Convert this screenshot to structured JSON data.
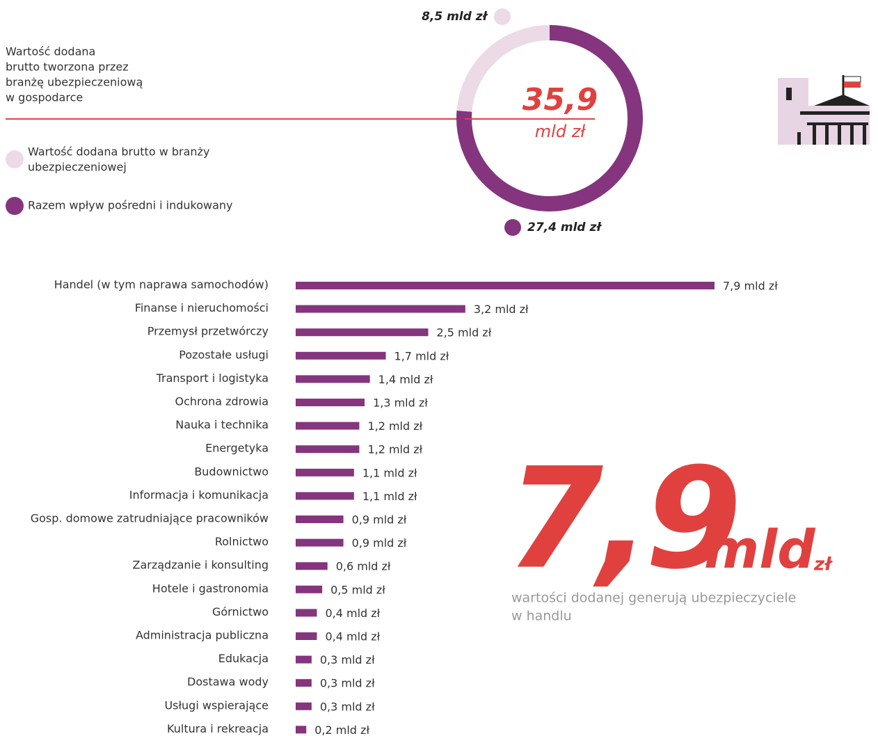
{
  "chart_data": [
    {
      "type": "donut",
      "title": [
        "Wartość dodana",
        "brutto tworzona przez",
        "branżę ubezpieczeniową",
        "w gospodarce"
      ],
      "total_label": "35,9",
      "total_unit": "mld zł",
      "series": [
        {
          "name": [
            "Wartość dodana brutto w branży",
            "ubezpieczeniowej"
          ],
          "color": "#ecdbe6",
          "values": [
            8.5
          ],
          "value_labels": [
            "8,5 mld zł"
          ]
        },
        {
          "name": [
            "Razem wpływ pośredni i indukowany"
          ],
          "color": "#84357e",
          "values": [
            27.4
          ],
          "value_labels": [
            "27,4 mld zł"
          ]
        }
      ]
    },
    {
      "type": "hbar",
      "color": "#84357e",
      "categories": [
        "Handel (w tym naprawa samochodów)",
        "Finanse i nieruchomości",
        "Przemysł przetwórczy",
        "Pozostałe usługi",
        "Transport i logistyka",
        "Ochrona zdrowia",
        "Nauka i technika",
        "Energetyka",
        "Budownictwo",
        "Informacja i komunikacja",
        "Gosp. domowe zatrudniające pracowników",
        "Rolnictwo",
        "Zarządzanie i konsulting",
        "Hotele i gastronomia",
        "Górnictwo",
        "Administracja publiczna",
        "Edukacja",
        "Dostawa wody",
        "Usługi wspierające",
        "Kultura i rekreacja"
      ],
      "values": [
        7.9,
        3.2,
        2.5,
        1.7,
        1.4,
        1.3,
        1.2,
        1.2,
        1.1,
        1.1,
        0.9,
        0.9,
        0.6,
        0.5,
        0.4,
        0.4,
        0.3,
        0.3,
        0.3,
        0.2
      ],
      "value_labels": [
        "7,9 mld zł",
        "3,2 mld zł",
        "2,5 mld zł",
        "1,7 mld zł",
        "1,4 mld zł",
        "1,3 mld zł",
        "1,2 mld zł",
        "1,2 mld zł",
        "1,1 mld zł",
        "1,1 mld zł",
        "0,9 mld zł",
        "0,9 mld zł",
        "0,6 mld zł",
        "0,5 mld zł",
        "0,4 mld zł",
        "0,4 mld zł",
        "0,3 mld zł",
        "0,3 mld zł",
        "0,3 mld zł",
        "0,2 mld zł"
      ],
      "annotation": {
        "value": "7,9",
        "unit": "mld",
        "currency": "zł",
        "text": [
          "wartości dodanej generują ubezpieczyciele",
          "w handlu"
        ]
      }
    }
  ]
}
